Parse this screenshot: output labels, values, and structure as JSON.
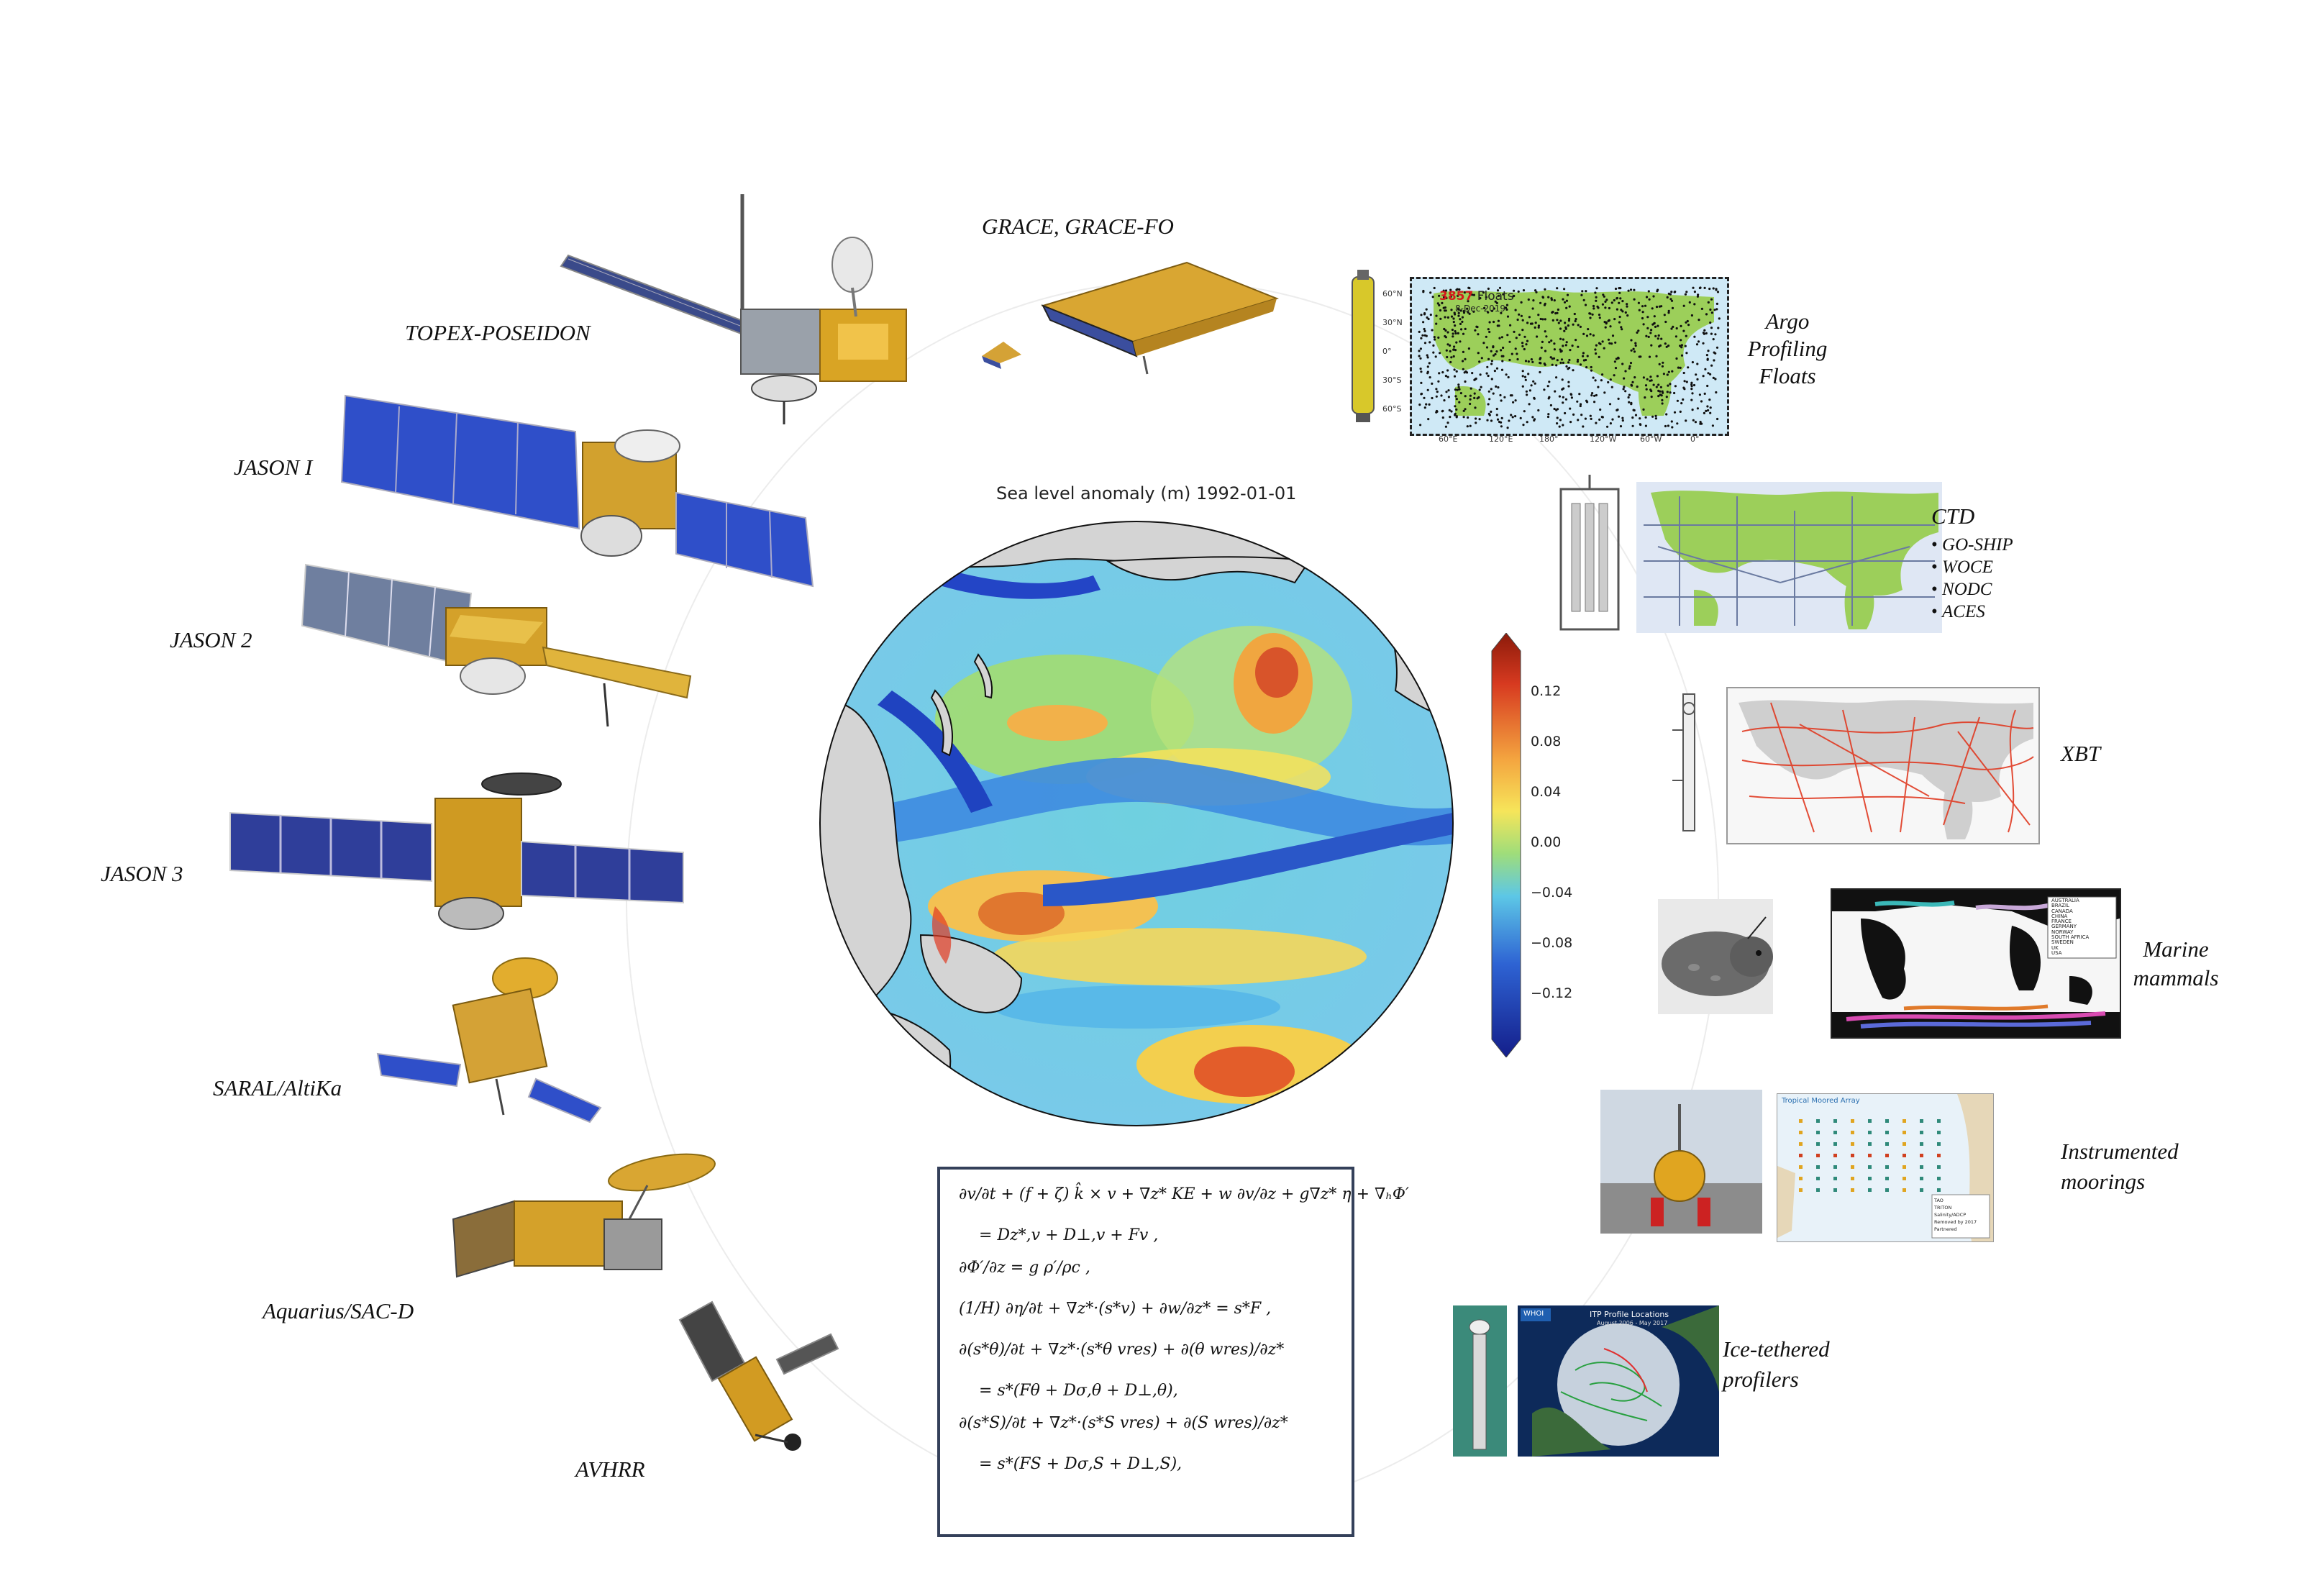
{
  "center_map": {
    "title": "Sea level anomaly (m) 1992-01-01",
    "colorbar_ticks": [
      "0.12",
      "0.08",
      "0.04",
      "0.00",
      "−0.04",
      "−0.08",
      "−0.12"
    ],
    "colorbar_range": [
      -0.14,
      0.14
    ]
  },
  "satellites": [
    {
      "key": "topex",
      "label": "TOPEX-POSEIDON"
    },
    {
      "key": "grace",
      "label": "GRACE, GRACE-FO"
    },
    {
      "key": "jason1",
      "label": "JASON I"
    },
    {
      "key": "jason2",
      "label": "JASON 2"
    },
    {
      "key": "jason3",
      "label": "JASON 3"
    },
    {
      "key": "saral",
      "label": "SARAL/AltiKa"
    },
    {
      "key": "aquarius",
      "label": "Aquarius/SAC-D"
    },
    {
      "key": "avhrr",
      "label": "AVHRR"
    }
  ],
  "in_situ": {
    "argo": {
      "label_lines": [
        "Argo",
        "Profiling",
        "Floats"
      ],
      "map_count": "3857",
      "map_count_suffix": "Floats",
      "map_date": "8-Dec-2019",
      "lat_labels": [
        "60°N",
        "30°N",
        "0°",
        "30°S",
        "60°S"
      ],
      "lon_labels": [
        "60°E",
        "120°E",
        "180°",
        "120°W",
        "60°W",
        "0°"
      ]
    },
    "ctd": {
      "label": "CTD",
      "bullets": [
        "GO-SHIP",
        "WOCE",
        "NODC",
        "ACES"
      ]
    },
    "xbt": {
      "label": "XBT"
    },
    "mammals": {
      "label_lines": [
        "Marine",
        "mammals"
      ],
      "legend": [
        "AUSTRALIA",
        "BRAZIL",
        "CANADA",
        "CHINA",
        "FRANCE",
        "GERMANY",
        "NORWAY",
        "SOUTH AFRICA",
        "SWEDEN",
        "UK",
        "USA"
      ]
    },
    "moorings": {
      "label_lines": [
        "Instrumented",
        "moorings"
      ],
      "map_title": "Tropical Moored Array",
      "legend": [
        "TAO",
        "TRITON",
        "Salinity/ADCP",
        "Removed by 2017",
        "Partnered"
      ]
    },
    "itp": {
      "label_lines": [
        "Ice-tethered",
        "profilers"
      ],
      "map_title": "ITP Profile Locations",
      "map_subtitle": "August 2006 - May 2017",
      "map_badge": "WHOI"
    }
  },
  "equations": [
    {
      "text": "∂v/∂t + (f + ζ) k̂ × v + ∇z* KE + w ∂v/∂z + g∇z* η + ∇ₕΦ′",
      "indent": false
    },
    {
      "text": "= Dz*,v + D⊥,v + Fv ,",
      "indent": true
    },
    {
      "text": "∂Φ′/∂z = g ρ′/ρc ,",
      "indent": false
    },
    {
      "text": "(1/H) ∂η/∂t + ∇z*·(s*v) + ∂w/∂z* = s*F ,",
      "indent": false
    },
    {
      "text": "∂(s*θ)/∂t + ∇z*·(s*θ vres) + ∂(θ wres)/∂z*",
      "indent": false
    },
    {
      "text": "= s*(Fθ + Dσ,θ + D⊥,θ),",
      "indent": true
    },
    {
      "text": "∂(s*S)/∂t + ∇z*·(s*S vres) + ∂(S wres)/∂z*",
      "indent": false
    },
    {
      "text": "= s*(FS + Dσ,S + D⊥,S),",
      "indent": true
    }
  ],
  "colors": {
    "ocean_green": "#9ccf5a",
    "ocean_pale": "#dbeef7",
    "xbt_red": "#e03a22",
    "globe_land": "#d4d4d4",
    "box_border": "#34405a",
    "panel_gold": "#c99a2a",
    "panel_blue": "#2f4fc9"
  }
}
